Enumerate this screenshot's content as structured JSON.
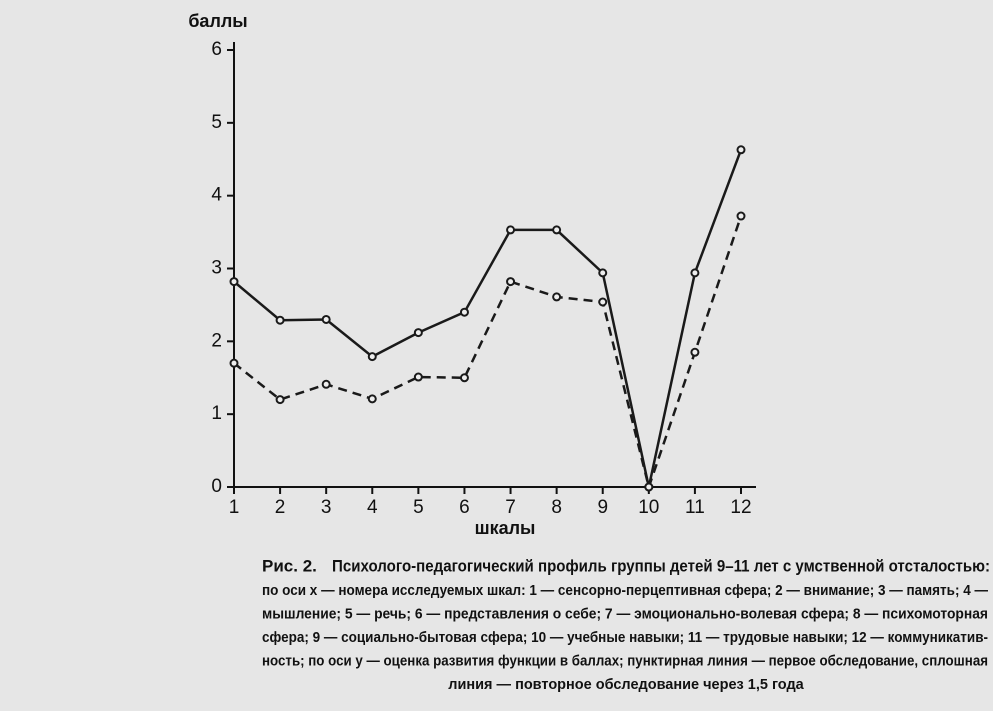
{
  "chart_data": {
    "type": "line",
    "ylabel": "баллы",
    "xlabel": "шкалы",
    "x": [
      1,
      2,
      3,
      4,
      5,
      6,
      7,
      8,
      9,
      10,
      11,
      12
    ],
    "xlim": [
      1,
      12
    ],
    "xticks": [
      1,
      2,
      3,
      4,
      5,
      6,
      7,
      8,
      9,
      10,
      11,
      12
    ],
    "ylim": [
      0,
      6
    ],
    "yticks": [
      0,
      1,
      2,
      3,
      4,
      5,
      6
    ],
    "series": [
      {
        "color": "#1a1a1a",
        "style": "solid",
        "values": [
          2.82,
          2.29,
          2.3,
          1.79,
          2.12,
          2.4,
          3.53,
          3.53,
          2.94,
          0,
          2.94,
          4.63
        ]
      },
      {
        "color": "#1a1a1a",
        "style": "dashed",
        "values": [
          1.7,
          1.2,
          1.41,
          1.21,
          1.51,
          1.5,
          2.82,
          2.61,
          2.54,
          0,
          1.85,
          3.72
        ]
      }
    ]
  },
  "caption": {
    "label": "Рис. 2.",
    "title": "Психолого-педагогический профиль группы детей 9–11 лет с умственной отсталостью:",
    "lines": [
      "по оси x — номера исследуемых шкал: 1 — сенсорно-перцептивная сфера; 2 — внимание; 3 — память; 4 —",
      "мышление; 5 — речь; 6 — представления о себе; 7 — эмоционально-волевая сфера; 8 — психомоторная",
      "сфера; 9 — социально-бытовая сфера; 10 — учебные навыки; 11 — трудовые навыки; 12 — коммуникатив-",
      "ность; по оси y — оценка развития функции в баллах; пунктирная линия — первое обследование, сплошная",
      "линия — повторное обследование через 1,5 года"
    ]
  }
}
